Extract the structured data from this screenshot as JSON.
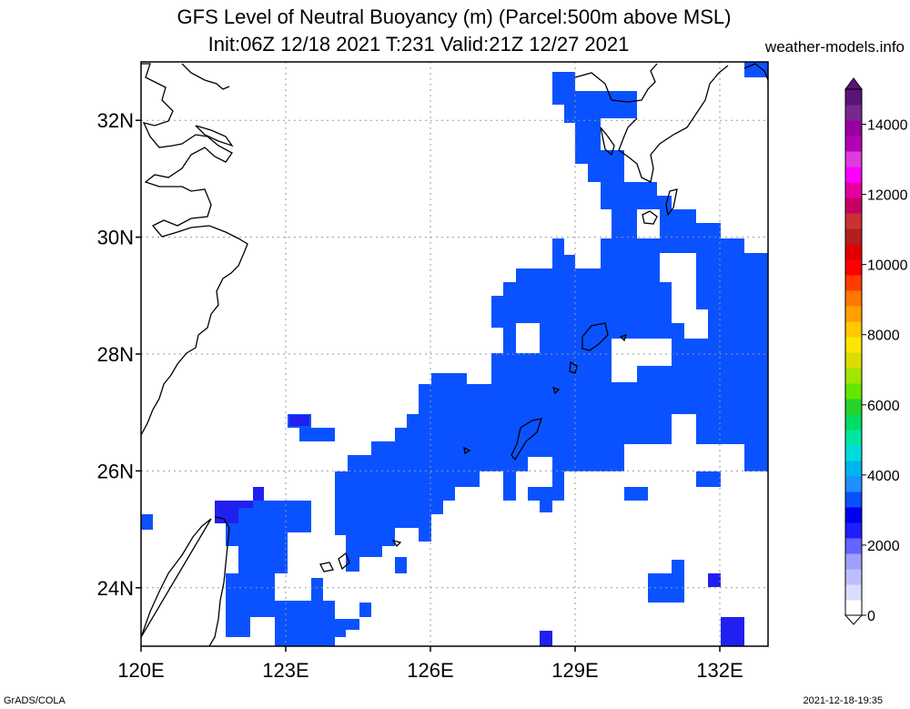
{
  "title_line1": "GFS Level of Neutral Buoyancy (m) (Parcel:500m above MSL)",
  "title_line2": "Init:06Z 12/18 2021 T:231 Valid:21Z 12/27 2021",
  "source": "weather-models.info",
  "footer_left": "GrADS/COLA",
  "footer_right": "2021-12-18-19:35",
  "map": {
    "lon_range": [
      120,
      133
    ],
    "lat_range": [
      23,
      33
    ],
    "lon_ticks": [
      {
        "value": 120,
        "label": "120E"
      },
      {
        "value": 123,
        "label": "123E"
      },
      {
        "value": 126,
        "label": "126E"
      },
      {
        "value": 129,
        "label": "129E"
      },
      {
        "value": 132,
        "label": "132E"
      }
    ],
    "lat_ticks": [
      {
        "value": 24,
        "label": "24N"
      },
      {
        "value": 26,
        "label": "26N"
      },
      {
        "value": 28,
        "label": "28N"
      },
      {
        "value": 30,
        "label": "30N"
      },
      {
        "value": 32,
        "label": "32N"
      }
    ]
  },
  "colorbar": {
    "labels": [
      "0",
      "2000",
      "4000",
      "6000",
      "8000",
      "10000",
      "12000",
      "14000"
    ],
    "colors": [
      "#ffffff",
      "#dcdcff",
      "#bebeff",
      "#a0a0ff",
      "#6464ff",
      "#1e1eff",
      "#0000f0",
      "#0a50ff",
      "#1e90ff",
      "#00b4f0",
      "#00dcdc",
      "#00e6a0",
      "#00dc64",
      "#28d228",
      "#64e600",
      "#a0e600",
      "#dcdc00",
      "#ffe600",
      "#ffc800",
      "#ffa000",
      "#ff7800",
      "#ff3c00",
      "#ff0000",
      "#e10000",
      "#b41e1e",
      "#c83232",
      "#c80064",
      "#e600a0",
      "#ff00ff",
      "#dc3cdc",
      "#b400b4",
      "#9600a0",
      "#78288c",
      "#5a1478"
    ]
  },
  "colors": {
    "main_fill": "#0a52ff",
    "dark_fill": "#2020f0",
    "grid": "#999999",
    "coast": "#000000"
  }
}
